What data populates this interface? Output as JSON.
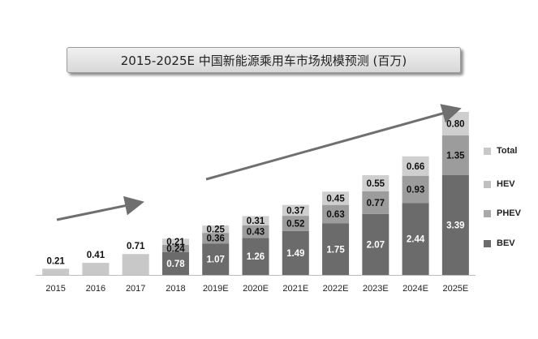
{
  "chart_data": {
    "type": "bar",
    "stacked": true,
    "title": "2015-2025E 中国新能源乘用车市场规模预测 (百万)",
    "categories": [
      "2015",
      "2016",
      "2017",
      "2018",
      "2019E",
      "2020E",
      "2021E",
      "2022E",
      "2023E",
      "2024E",
      "2025E"
    ],
    "series": [
      {
        "name": "Total",
        "color": "#c8c8c8",
        "values": [
          0.21,
          0.41,
          0.71,
          null,
          null,
          null,
          null,
          null,
          null,
          null,
          null
        ]
      },
      {
        "name": "BEV",
        "color": "#6b6b6b",
        "values": [
          null,
          null,
          null,
          0.78,
          1.07,
          1.26,
          1.49,
          1.75,
          2.07,
          2.44,
          3.39
        ]
      },
      {
        "name": "PHEV",
        "color": "#9c9c9c",
        "values": [
          null,
          null,
          null,
          0.24,
          0.36,
          0.43,
          0.52,
          0.63,
          0.77,
          0.93,
          1.35
        ]
      },
      {
        "name": "HEV",
        "color": "#cfcfcf",
        "values": [
          null,
          null,
          null,
          0.21,
          0.25,
          0.31,
          0.37,
          0.45,
          0.55,
          0.66,
          0.8
        ]
      }
    ],
    "legend": [
      "Total",
      "HEV",
      "PHEV",
      "BEV"
    ],
    "legend_position": "right",
    "ylim": [
      0,
      5.6
    ],
    "grid": false,
    "annotations": [
      "trend-arrow-2015-2017",
      "trend-arrow-2019E-2025E"
    ]
  }
}
